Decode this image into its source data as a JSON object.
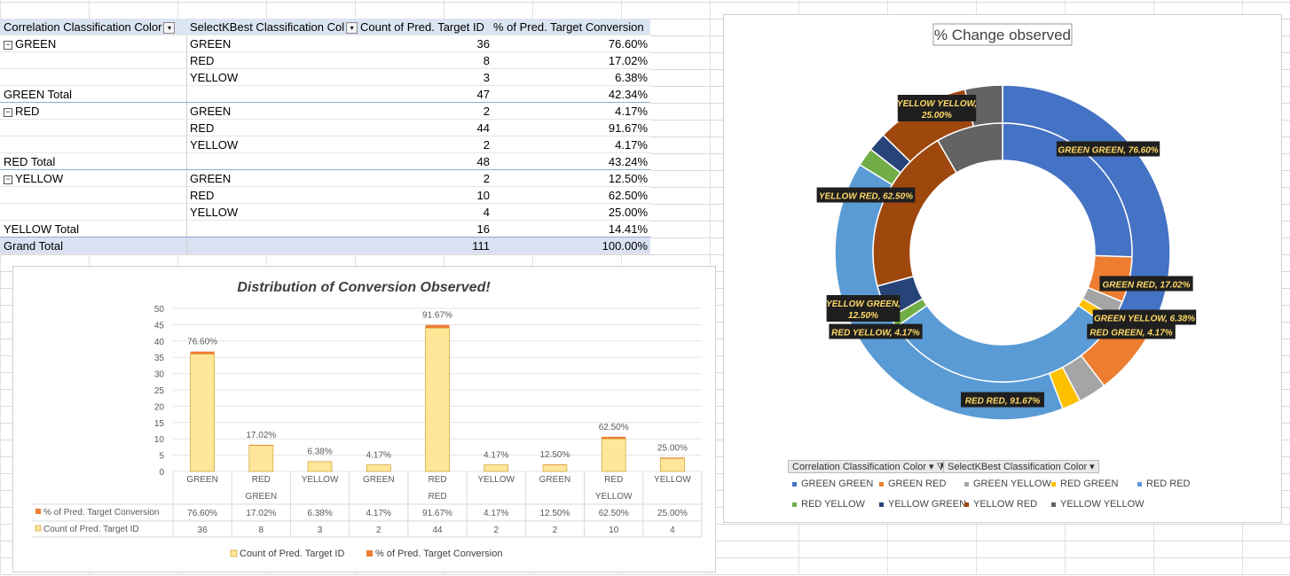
{
  "pivot": {
    "headers": {
      "col1": "Correlation Classification Color",
      "col2": "SelectKBest Classification Col",
      "col3": "Count of Pred. Target ID",
      "col4": "% of Pred. Target Conversion"
    },
    "rows": [
      {
        "c1": "GREEN",
        "c2": "GREEN",
        "c3": "36",
        "c4": "76.60%"
      },
      {
        "c1": "",
        "c2": "RED",
        "c3": "8",
        "c4": "17.02%"
      },
      {
        "c1": "",
        "c2": "YELLOW",
        "c3": "3",
        "c4": "6.38%"
      },
      {
        "c1": "GREEN Total",
        "c2": "",
        "c3": "47",
        "c4": "42.34%"
      },
      {
        "c1": "RED",
        "c2": "GREEN",
        "c3": "2",
        "c4": "4.17%"
      },
      {
        "c1": "",
        "c2": "RED",
        "c3": "44",
        "c4": "91.67%"
      },
      {
        "c1": "",
        "c2": "YELLOW",
        "c3": "2",
        "c4": "4.17%"
      },
      {
        "c1": "RED Total",
        "c2": "",
        "c3": "48",
        "c4": "43.24%"
      },
      {
        "c1": "YELLOW",
        "c2": "GREEN",
        "c3": "2",
        "c4": "12.50%"
      },
      {
        "c1": "",
        "c2": "RED",
        "c3": "10",
        "c4": "62.50%"
      },
      {
        "c1": "",
        "c2": "YELLOW",
        "c3": "4",
        "c4": "25.00%"
      },
      {
        "c1": "YELLOW Total",
        "c2": "",
        "c3": "16",
        "c4": "14.41%"
      },
      {
        "c1": "Grand Total",
        "c2": "",
        "c3": "111",
        "c4": "100.00%"
      }
    ]
  },
  "chart_data": [
    {
      "type": "bar",
      "title": "Distribution of Conversion Observed!",
      "categories": [
        "GREEN",
        "RED",
        "YELLOW",
        "GREEN",
        "RED",
        "YELLOW",
        "GREEN",
        "RED",
        "YELLOW"
      ],
      "groups": [
        "GREEN",
        "RED",
        "YELLOW"
      ],
      "series": [
        {
          "name": "Count of Pred. Target ID",
          "values": [
            36,
            8,
            3,
            2,
            44,
            2,
            2,
            10,
            4
          ],
          "color": "#ffe699"
        },
        {
          "name": "% of Pred. Target Conversion",
          "values": [
            0.766,
            0.1702,
            0.0638,
            0.0417,
            0.9167,
            0.0417,
            0.125,
            0.625,
            0.25
          ],
          "color": "#ed7d31"
        }
      ],
      "data_labels": [
        "76.60%",
        "17.02%",
        "6.38%",
        "4.17%",
        "91.67%",
        "4.17%",
        "12.50%",
        "62.50%",
        "25.00%"
      ],
      "table_rows": {
        "pct": [
          "76.60%",
          "17.02%",
          "6.38%",
          "4.17%",
          "91.67%",
          "4.17%",
          "12.50%",
          "62.50%",
          "25.00%"
        ],
        "count": [
          "36",
          "8",
          "3",
          "2",
          "44",
          "2",
          "2",
          "10",
          "4"
        ]
      },
      "yticks": [
        "0",
        "5",
        "10",
        "15",
        "20",
        "25",
        "30",
        "35",
        "40",
        "45",
        "50"
      ],
      "ylim": [
        0,
        50
      ],
      "legend": [
        "Count of Pred. Target ID",
        "% of Pred. Target Conversion"
      ]
    },
    {
      "type": "pie",
      "title": "% Change observed",
      "outer_ring": [
        {
          "label": "GREEN GREEN",
          "value": 36,
          "color": "#4472c4"
        },
        {
          "label": "GREEN RED",
          "value": 8,
          "color": "#ed7d31"
        },
        {
          "label": "GREEN YELLOW",
          "value": 3,
          "color": "#a5a5a5"
        },
        {
          "label": "RED GREEN",
          "value": 2,
          "color": "#ffc000"
        },
        {
          "label": "RED RED",
          "value": 44,
          "color": "#5b9bd5"
        },
        {
          "label": "RED YELLOW",
          "value": 2,
          "color": "#70ad47"
        },
        {
          "label": "YELLOW GREEN",
          "value": 2,
          "color": "#264478"
        },
        {
          "label": "YELLOW RED",
          "value": 10,
          "color": "#9e480e"
        },
        {
          "label": "YELLOW YELLOW",
          "value": 4,
          "color": "#636363"
        }
      ],
      "inner_ring": [
        {
          "label": "GREEN GREEN",
          "value": 0.766,
          "color": "#4472c4"
        },
        {
          "label": "GREEN RED",
          "value": 0.1702,
          "color": "#ed7d31"
        },
        {
          "label": "GREEN YELLOW",
          "value": 0.0638,
          "color": "#a5a5a5"
        },
        {
          "label": "RED GREEN",
          "value": 0.0417,
          "color": "#ffc000"
        },
        {
          "label": "RED RED",
          "value": 0.9167,
          "color": "#5b9bd5"
        },
        {
          "label": "RED YELLOW",
          "value": 0.0417,
          "color": "#70ad47"
        },
        {
          "label": "YELLOW GREEN",
          "value": 0.125,
          "color": "#264478"
        },
        {
          "label": "YELLOW RED",
          "value": 0.625,
          "color": "#9e480e"
        },
        {
          "label": "YELLOW YELLOW",
          "value": 0.25,
          "color": "#636363"
        }
      ],
      "callouts": [
        "GREEN GREEN, 76.60%",
        "GREEN RED, 17.02%",
        "GREEN YELLOW, 6.38%",
        "RED GREEN, 4.17%",
        "RED RED, 91.67%",
        "RED YELLOW, 4.17%",
        "YELLOW GREEN, 12.50%",
        "YELLOW RED, 62.50%",
        "YELLOW YELLOW, 25.00%"
      ],
      "field_buttons": [
        "Correlation Classification Color",
        "SelectKBest Classification Color"
      ],
      "legend": [
        "GREEN GREEN",
        "GREEN RED",
        "GREEN YELLOW",
        "RED GREEN",
        "RED RED",
        "RED YELLOW",
        "YELLOW GREEN",
        "YELLOW RED",
        "YELLOW YELLOW"
      ]
    }
  ]
}
